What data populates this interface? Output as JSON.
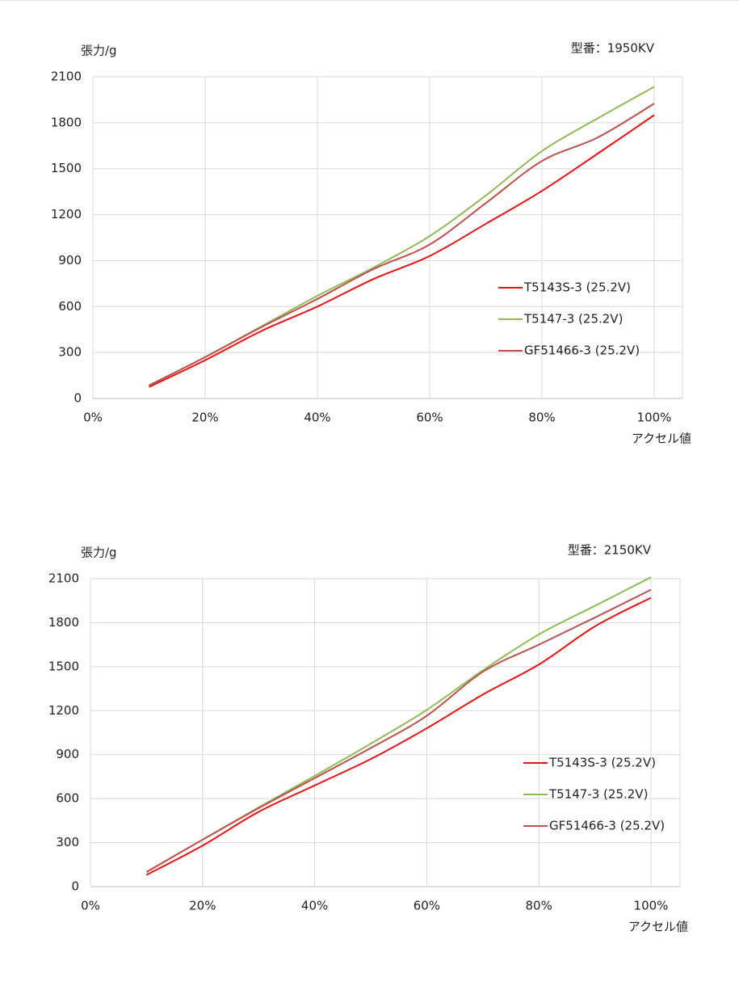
{
  "chart_data": [
    {
      "type": "line",
      "title": "型番：1950KV",
      "y_label": "張力/g",
      "x_label": "アクセル値",
      "x": [
        10,
        20,
        30,
        40,
        50,
        60,
        70,
        80,
        90,
        100
      ],
      "xlim": [
        0,
        100
      ],
      "xticks": [
        {
          "value": 0,
          "label": "0%"
        },
        {
          "value": 20,
          "label": "20%"
        },
        {
          "value": 40,
          "label": "40%"
        },
        {
          "value": 60,
          "label": "60%"
        },
        {
          "value": 80,
          "label": "80%"
        },
        {
          "value": 100,
          "label": "100%"
        }
      ],
      "ylim": [
        0,
        2100
      ],
      "yticks": [
        0,
        300,
        600,
        900,
        1200,
        1500,
        1800,
        2100
      ],
      "grid": true,
      "legend": "right",
      "series": [
        {
          "name": "T5143S-3 (25.2V)",
          "color": "#ee1111",
          "values": [
            75,
            250,
            440,
            600,
            780,
            930,
            1140,
            1355,
            1600,
            1850
          ]
        },
        {
          "name": "T5147-3 (25.2V)",
          "color": "#92bb53",
          "values": [
            85,
            270,
            470,
            670,
            855,
            1060,
            1325,
            1615,
            1830,
            2035
          ]
        },
        {
          "name": "GF51466-3 (25.2V)",
          "color": "#c0504d",
          "values": [
            85,
            270,
            465,
            650,
            845,
            1005,
            1275,
            1550,
            1705,
            1925
          ]
        }
      ]
    },
    {
      "type": "line",
      "title": "型番：2150KV",
      "y_label": "張力/g",
      "x_label": "アクセル値",
      "x": [
        10,
        20,
        30,
        40,
        50,
        60,
        70,
        80,
        90,
        100
      ],
      "xlim": [
        0,
        100
      ],
      "xticks": [
        {
          "value": 0,
          "label": "0%"
        },
        {
          "value": 20,
          "label": "20%"
        },
        {
          "value": 40,
          "label": "40%"
        },
        {
          "value": 60,
          "label": "60%"
        },
        {
          "value": 80,
          "label": "80%"
        },
        {
          "value": 100,
          "label": "100%"
        }
      ],
      "ylim": [
        0,
        2100
      ],
      "yticks": [
        0,
        300,
        600,
        900,
        1200,
        1500,
        1800,
        2100
      ],
      "grid": true,
      "legend": "right",
      "series": [
        {
          "name": "T5143S-3 (25.2V)",
          "color": "#ee1111",
          "values": [
            80,
            280,
            510,
            690,
            870,
            1080,
            1310,
            1515,
            1775,
            1970
          ]
        },
        {
          "name": "T5147-3 (25.2V)",
          "color": "#92bb53",
          "values": [
            100,
            320,
            540,
            755,
            975,
            1205,
            1475,
            1720,
            1915,
            2110
          ]
        },
        {
          "name": "GF51466-3 (25.2V)",
          "color": "#c0504d",
          "values": [
            100,
            320,
            535,
            740,
            945,
            1165,
            1465,
            1650,
            1835,
            2025
          ]
        }
      ]
    }
  ]
}
